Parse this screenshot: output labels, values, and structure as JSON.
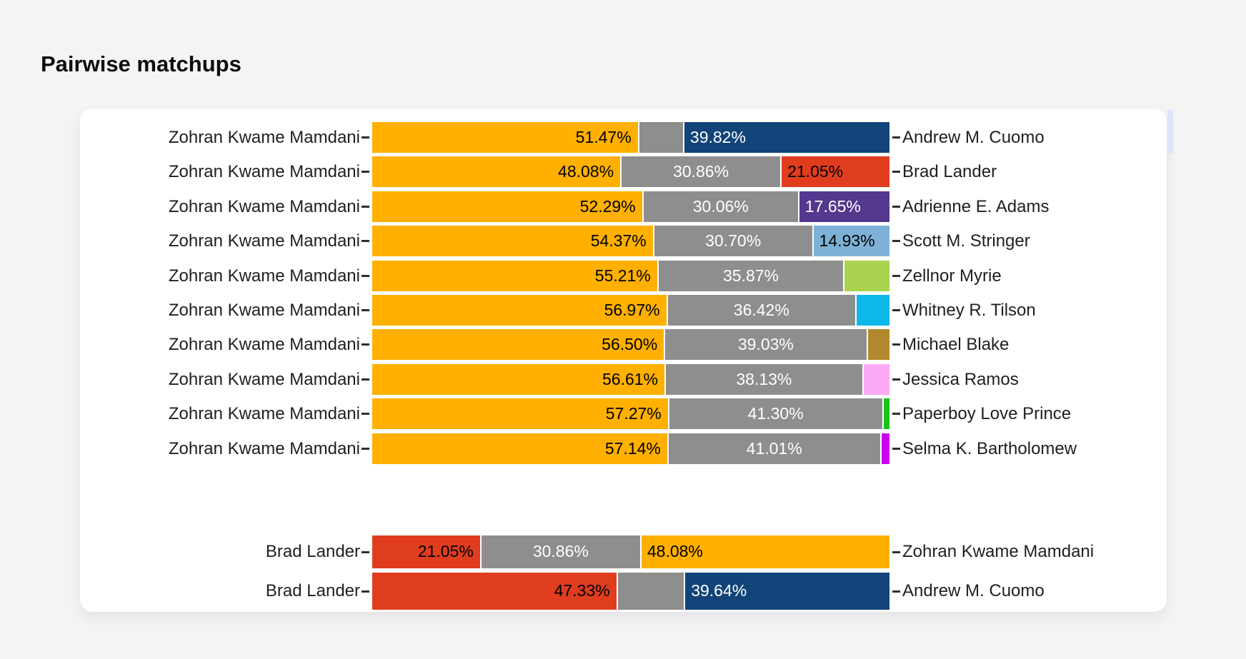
{
  "title": "Pairwise matchups",
  "palette": {
    "page_background": "#f4f4f5",
    "card_background": "#ffffff",
    "undecided_gray": "#8e8e8e",
    "mamdani_orange": "#ffb000",
    "cuomo_navy": "#114478",
    "lander_red": "#e03d1f",
    "adams_purple": "#54388f",
    "stringer_lightblue": "#7eb1d6",
    "myrie_green": "#a9d34f",
    "tilson_cyan": "#0db8e8",
    "blake_gold": "#b1892d",
    "ramos_pink": "#fbaaf6",
    "paperboy_green": "#16c316",
    "bartholomew_magenta": "#cc00ee"
  },
  "chart_data": {
    "type": "bar",
    "orientation": "horizontal",
    "stacked": true,
    "unit": "%",
    "axis_range": [
      0,
      100
    ],
    "grid": false,
    "legend": false,
    "groups": [
      {
        "name": "mamdani-matchups",
        "rows": [
          {
            "left": "Zohran Kwame Mamdani",
            "right": "Andrew M. Cuomo",
            "segments": [
              {
                "pct": 51.47,
                "label": "51.47%",
                "color": "#ffb000",
                "text_color": "#000000",
                "align": "right"
              },
              {
                "pct": 8.71,
                "label": "",
                "color": "#8e8e8e",
                "text_color": "#ffffff",
                "align": "center"
              },
              {
                "pct": 39.82,
                "label": "39.82%",
                "color": "#114478",
                "text_color": "#ffffff",
                "align": "left"
              }
            ]
          },
          {
            "left": "Zohran Kwame Mamdani",
            "right": "Brad Lander",
            "segments": [
              {
                "pct": 48.08,
                "label": "48.08%",
                "color": "#ffb000",
                "text_color": "#000000",
                "align": "right"
              },
              {
                "pct": 30.86,
                "label": "30.86%",
                "color": "#8e8e8e",
                "text_color": "#ffffff",
                "align": "center"
              },
              {
                "pct": 21.05,
                "label": "21.05%",
                "color": "#e03d1f",
                "text_color": "#000000",
                "align": "left"
              }
            ]
          },
          {
            "left": "Zohran Kwame Mamdani",
            "right": "Adrienne E. Adams",
            "segments": [
              {
                "pct": 52.29,
                "label": "52.29%",
                "color": "#ffb000",
                "text_color": "#000000",
                "align": "right"
              },
              {
                "pct": 30.06,
                "label": "30.06%",
                "color": "#8e8e8e",
                "text_color": "#ffffff",
                "align": "center"
              },
              {
                "pct": 17.65,
                "label": "17.65%",
                "color": "#54388f",
                "text_color": "#ffffff",
                "align": "left"
              }
            ]
          },
          {
            "left": "Zohran Kwame Mamdani",
            "right": "Scott M. Stringer",
            "segments": [
              {
                "pct": 54.37,
                "label": "54.37%",
                "color": "#ffb000",
                "text_color": "#000000",
                "align": "right"
              },
              {
                "pct": 30.7,
                "label": "30.70%",
                "color": "#8e8e8e",
                "text_color": "#ffffff",
                "align": "center"
              },
              {
                "pct": 14.93,
                "label": "14.93%",
                "color": "#7eb1d6",
                "text_color": "#000000",
                "align": "left"
              }
            ]
          },
          {
            "left": "Zohran Kwame Mamdani",
            "right": "Zellnor Myrie",
            "segments": [
              {
                "pct": 55.21,
                "label": "55.21%",
                "color": "#ffb000",
                "text_color": "#000000",
                "align": "right"
              },
              {
                "pct": 35.87,
                "label": "35.87%",
                "color": "#8e8e8e",
                "text_color": "#ffffff",
                "align": "center"
              },
              {
                "pct": 8.92,
                "label": "",
                "color": "#a9d34f",
                "text_color": "#000000",
                "align": "left"
              }
            ]
          },
          {
            "left": "Zohran Kwame Mamdani",
            "right": "Whitney R. Tilson",
            "segments": [
              {
                "pct": 56.97,
                "label": "56.97%",
                "color": "#ffb000",
                "text_color": "#000000",
                "align": "right"
              },
              {
                "pct": 36.42,
                "label": "36.42%",
                "color": "#8e8e8e",
                "text_color": "#ffffff",
                "align": "center"
              },
              {
                "pct": 6.61,
                "label": "",
                "color": "#0db8e8",
                "text_color": "#000000",
                "align": "left"
              }
            ]
          },
          {
            "left": "Zohran Kwame Mamdani",
            "right": "Michael Blake",
            "segments": [
              {
                "pct": 56.5,
                "label": "56.50%",
                "color": "#ffb000",
                "text_color": "#000000",
                "align": "right"
              },
              {
                "pct": 39.03,
                "label": "39.03%",
                "color": "#8e8e8e",
                "text_color": "#ffffff",
                "align": "center"
              },
              {
                "pct": 4.47,
                "label": "",
                "color": "#b1892d",
                "text_color": "#000000",
                "align": "left"
              }
            ]
          },
          {
            "left": "Zohran Kwame Mamdani",
            "right": "Jessica Ramos",
            "segments": [
              {
                "pct": 56.61,
                "label": "56.61%",
                "color": "#ffb000",
                "text_color": "#000000",
                "align": "right"
              },
              {
                "pct": 38.13,
                "label": "38.13%",
                "color": "#8e8e8e",
                "text_color": "#ffffff",
                "align": "center"
              },
              {
                "pct": 5.26,
                "label": "",
                "color": "#fbaaf6",
                "text_color": "#000000",
                "align": "left"
              }
            ]
          },
          {
            "left": "Zohran Kwame Mamdani",
            "right": "Paperboy Love Prince",
            "segments": [
              {
                "pct": 57.27,
                "label": "57.27%",
                "color": "#ffb000",
                "text_color": "#000000",
                "align": "right"
              },
              {
                "pct": 41.3,
                "label": "41.30%",
                "color": "#8e8e8e",
                "text_color": "#ffffff",
                "align": "center"
              },
              {
                "pct": 1.43,
                "label": "",
                "color": "#16c316",
                "text_color": "#000000",
                "align": "left"
              }
            ]
          },
          {
            "left": "Zohran Kwame Mamdani",
            "right": "Selma K. Bartholomew",
            "segments": [
              {
                "pct": 57.14,
                "label": "57.14%",
                "color": "#ffb000",
                "text_color": "#000000",
                "align": "right"
              },
              {
                "pct": 41.01,
                "label": "41.01%",
                "color": "#8e8e8e",
                "text_color": "#ffffff",
                "align": "center"
              },
              {
                "pct": 1.85,
                "label": "",
                "color": "#cc00ee",
                "text_color": "#000000",
                "align": "left"
              }
            ]
          }
        ]
      },
      {
        "name": "lander-matchups",
        "rows": [
          {
            "left": "Brad Lander",
            "right": "Zohran Kwame Mamdani",
            "segments": [
              {
                "pct": 21.05,
                "label": "21.05%",
                "color": "#e03d1f",
                "text_color": "#000000",
                "align": "right"
              },
              {
                "pct": 30.86,
                "label": "30.86%",
                "color": "#8e8e8e",
                "text_color": "#ffffff",
                "align": "center"
              },
              {
                "pct": 48.08,
                "label": "48.08%",
                "color": "#ffb000",
                "text_color": "#000000",
                "align": "left"
              }
            ]
          },
          {
            "left": "Brad Lander",
            "right": "Andrew M. Cuomo",
            "segments": [
              {
                "pct": 47.33,
                "label": "47.33%",
                "color": "#e03d1f",
                "text_color": "#000000",
                "align": "right"
              },
              {
                "pct": 13.03,
                "label": "",
                "color": "#8e8e8e",
                "text_color": "#ffffff",
                "align": "center"
              },
              {
                "pct": 39.64,
                "label": "39.64%",
                "color": "#114478",
                "text_color": "#ffffff",
                "align": "left"
              }
            ]
          }
        ]
      }
    ]
  }
}
